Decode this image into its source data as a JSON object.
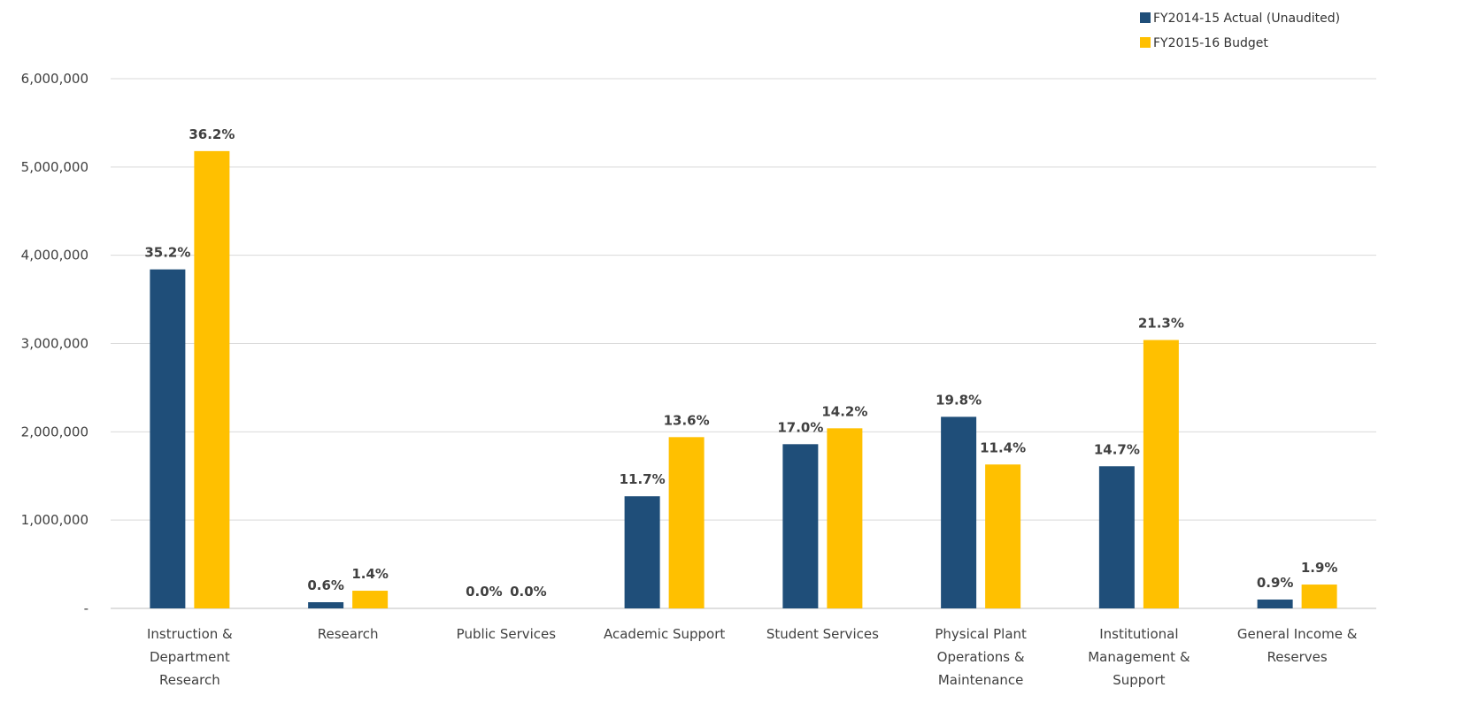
{
  "chart_data": {
    "type": "bar",
    "categories": [
      [
        "Instruction &",
        "Department",
        "Research"
      ],
      [
        "Research"
      ],
      [
        "Public Services"
      ],
      [
        "Academic Support"
      ],
      [
        "Student Services"
      ],
      [
        "Physical Plant",
        "Operations &",
        "Maintenance"
      ],
      [
        "Institutional",
        "Management &",
        "Support"
      ],
      [
        "General Income &",
        "Reserves"
      ]
    ],
    "series": [
      {
        "name": "FY2014-15 Actual (Unaudited)",
        "color": "#1F4E79",
        "values": [
          3840000,
          70000,
          0,
          1270000,
          1860000,
          2170000,
          1610000,
          100000
        ],
        "labels": [
          "35.2%",
          "0.6%",
          "0.0%",
          "11.7%",
          "17.0%",
          "19.8%",
          "14.7%",
          "0.9%"
        ]
      },
      {
        "name": "FY2015-16 Budget",
        "color": "#FFC000",
        "values": [
          5180000,
          200000,
          0,
          1940000,
          2040000,
          1630000,
          3040000,
          270000
        ],
        "labels": [
          "36.2%",
          "1.4%",
          "0.0%",
          "13.6%",
          "14.2%",
          "11.4%",
          "21.3%",
          "1.9%"
        ]
      }
    ],
    "ylim": [
      0,
      6000000
    ],
    "yticks": [
      0,
      1000000,
      2000000,
      3000000,
      4000000,
      5000000,
      6000000
    ],
    "ytick_labels": [
      "-",
      "1,000,000",
      "2,000,000",
      "3,000,000",
      "4,000,000",
      "5,000,000",
      "6,000,000"
    ],
    "grid": true,
    "legend_position": "top-right",
    "title": "",
    "xlabel": "",
    "ylabel": ""
  }
}
